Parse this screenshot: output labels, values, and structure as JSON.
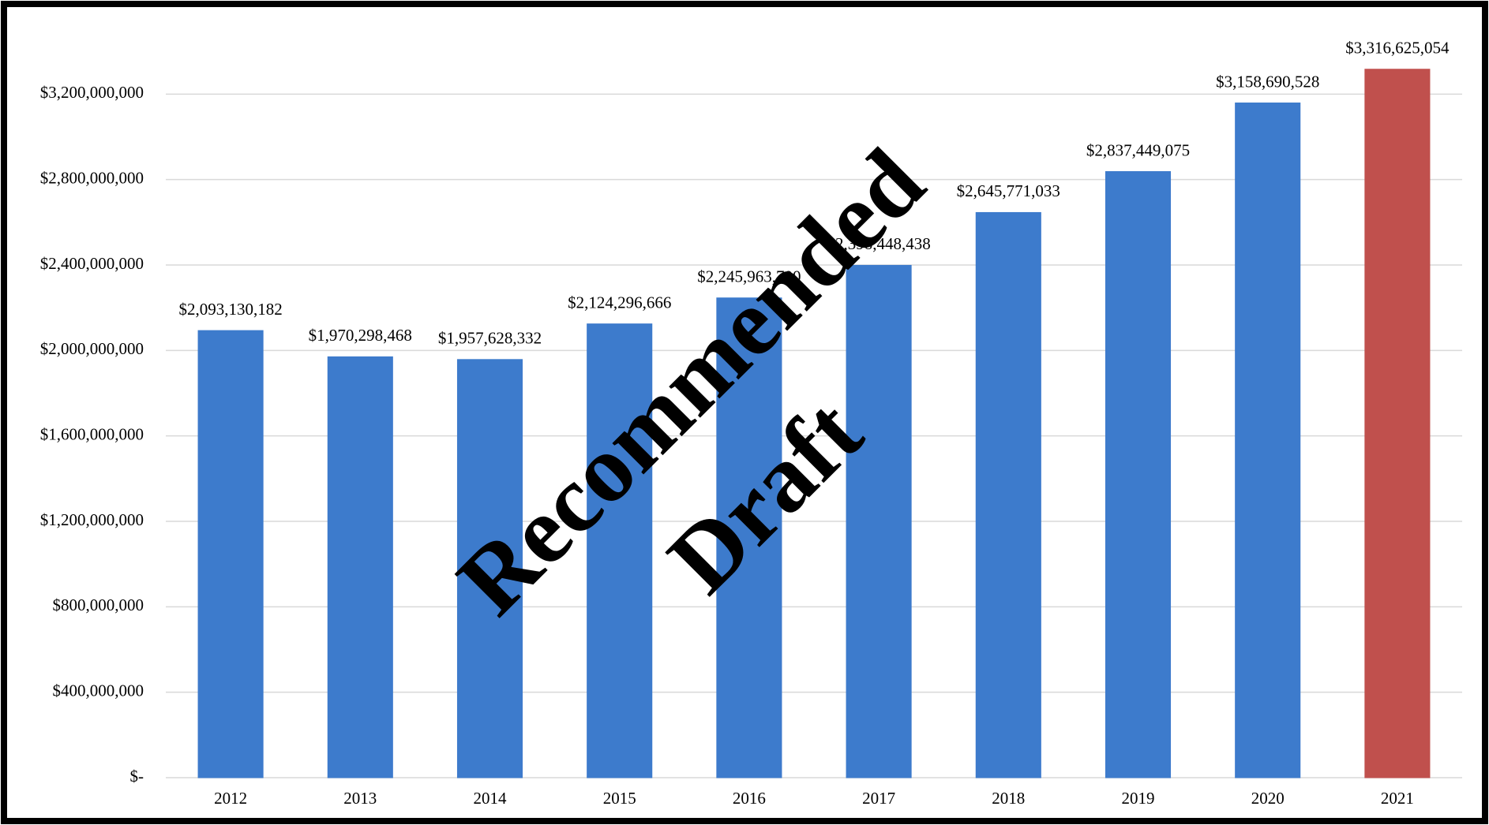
{
  "chart_data": {
    "type": "bar",
    "categories": [
      "2012",
      "2013",
      "2014",
      "2015",
      "2016",
      "2017",
      "2018",
      "2019",
      "2020",
      "2021"
    ],
    "values": [
      2093130182,
      1970298468,
      1957628332,
      2124296666,
      2245963700,
      2398448438,
      2645771033,
      2837449075,
      3158690528,
      3316625054
    ],
    "value_labels": [
      "$2,093,130,182",
      "$1,970,298,468",
      "$1,957,628,332",
      "$2,124,296,666",
      "$2,245,963,700",
      "$2,398,448,438",
      "$2,645,771,033",
      "$2,837,449,075",
      "$3,158,690,528",
      "$3,316,625,054"
    ],
    "colors": [
      "#3d7bcc",
      "#3d7bcc",
      "#3d7bcc",
      "#3d7bcc",
      "#3d7bcc",
      "#3d7bcc",
      "#3d7bcc",
      "#3d7bcc",
      "#3d7bcc",
      "#c0504d"
    ],
    "ylim": [
      0,
      3600000000
    ],
    "yticks": [
      {
        "value": 0,
        "label": "$-"
      },
      {
        "value": 400000000,
        "label": "$400,000,000"
      },
      {
        "value": 800000000,
        "label": "$800,000,000"
      },
      {
        "value": 1200000000,
        "label": "$1,200,000,000"
      },
      {
        "value": 1600000000,
        "label": "$1,600,000,000"
      },
      {
        "value": 2000000000,
        "label": "$2,000,000,000"
      },
      {
        "value": 2400000000,
        "label": "$2,400,000,000"
      },
      {
        "value": 2800000000,
        "label": "$2,800,000,000"
      },
      {
        "value": 3200000000,
        "label": "$3,200,000,000"
      }
    ],
    "grid": true,
    "annotations": [
      "Recommended",
      "Draft"
    ]
  }
}
